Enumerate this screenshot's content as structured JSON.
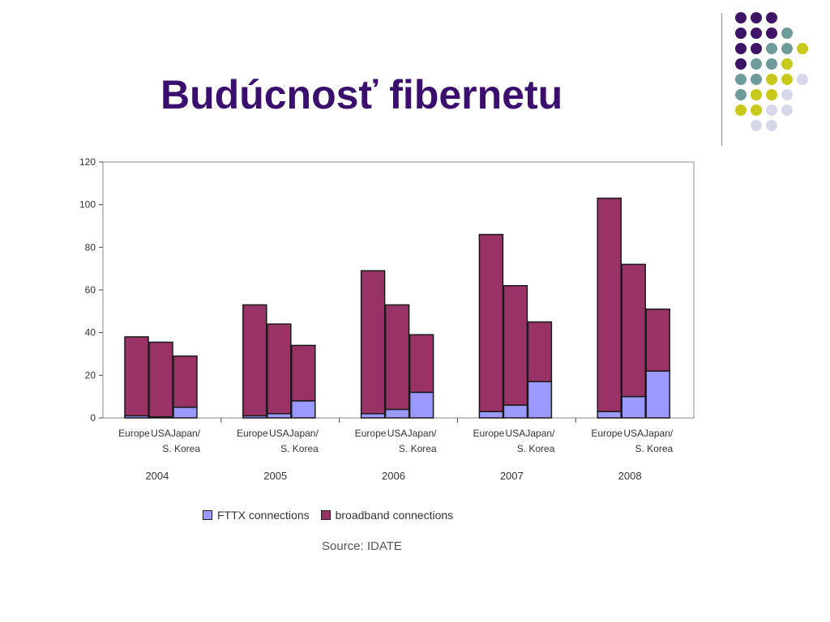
{
  "slide": {
    "title": "Budúcnosť fibernetu",
    "source": "Source: IDATE"
  },
  "decor": {
    "dot_colors": {
      "purple": "#3d1466",
      "teal": "#6f9b9b",
      "lime": "#c9c91c",
      "lavender": "#d7d7ea"
    },
    "rows": [
      [
        "purple",
        "purple",
        "purple"
      ],
      [
        "purple",
        "purple",
        "purple",
        "teal"
      ],
      [
        "purple",
        "purple",
        "teal",
        "teal",
        "lime"
      ],
      [
        "purple",
        "teal",
        "teal",
        "lime"
      ],
      [
        "teal",
        "teal",
        "lime",
        "lime",
        "lavender"
      ],
      [
        "teal",
        "lime",
        "lime",
        "lavender"
      ],
      [
        "lime",
        "lime",
        "lavender",
        "lavender"
      ],
      [
        "lavender",
        "lavender"
      ]
    ]
  },
  "chart_data": {
    "type": "bar",
    "stacked": true,
    "ylim": [
      0,
      120
    ],
    "yticks": [
      "0",
      "20",
      "40",
      "60",
      "80",
      "100",
      "120"
    ],
    "groups": [
      "2004",
      "2005",
      "2006",
      "2007",
      "2008"
    ],
    "categories": [
      "Europe",
      "USA",
      "Japan/\nS. Korea"
    ],
    "category_labels": [
      [
        "Europe"
      ],
      [
        "USA"
      ],
      [
        "Japan/",
        "S. Korea"
      ]
    ],
    "series": [
      {
        "name": "FTTX connections",
        "color": "#9999ff",
        "values": [
          [
            1,
            0.5,
            5
          ],
          [
            1,
            2,
            8
          ],
          [
            2,
            4,
            12
          ],
          [
            3,
            6,
            17
          ],
          [
            3,
            10,
            22
          ]
        ]
      },
      {
        "name": "broadband connections",
        "color": "#993366",
        "values": [
          [
            37,
            35,
            24
          ],
          [
            52,
            42,
            26
          ],
          [
            67,
            49,
            27
          ],
          [
            83,
            56,
            28
          ],
          [
            100,
            62,
            29
          ]
        ]
      }
    ],
    "legend_position": "bottom",
    "grid": false
  }
}
